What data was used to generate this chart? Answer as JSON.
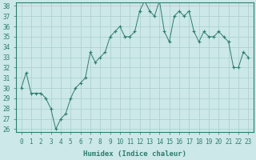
{
  "data_points": [
    [
      0,
      30
    ],
    [
      0.5,
      31.5
    ],
    [
      1,
      29.5
    ],
    [
      1.5,
      29.5
    ],
    [
      2,
      29.5
    ],
    [
      2.5,
      29
    ],
    [
      3,
      28
    ],
    [
      3.5,
      26
    ],
    [
      4,
      27
    ],
    [
      4.5,
      27.5
    ],
    [
      5,
      29
    ],
    [
      5.5,
      30
    ],
    [
      6,
      30.5
    ],
    [
      6.5,
      31
    ],
    [
      7,
      33.5
    ],
    [
      7.5,
      32.5
    ],
    [
      8,
      33
    ],
    [
      8.5,
      33.5
    ],
    [
      9,
      35
    ],
    [
      9.5,
      35.5
    ],
    [
      10,
      36
    ],
    [
      10.5,
      35
    ],
    [
      11,
      35
    ],
    [
      11.5,
      35.5
    ],
    [
      12,
      37.5
    ],
    [
      12.5,
      38.5
    ],
    [
      13,
      37.5
    ],
    [
      13.5,
      37
    ],
    [
      14,
      38.5
    ],
    [
      14.5,
      35.5
    ],
    [
      15,
      34.5
    ],
    [
      15.5,
      37
    ],
    [
      16,
      37.5
    ],
    [
      16.5,
      37
    ],
    [
      17,
      37.5
    ],
    [
      17.5,
      35.5
    ],
    [
      18,
      34.5
    ],
    [
      18.5,
      35.5
    ],
    [
      19,
      35
    ],
    [
      19.5,
      35
    ],
    [
      20,
      35.5
    ],
    [
      20.5,
      35
    ],
    [
      21,
      34.5
    ],
    [
      21.5,
      32
    ],
    [
      22,
      32
    ],
    [
      22.5,
      33.5
    ],
    [
      23,
      33
    ]
  ],
  "line_color": "#2e7d6e",
  "marker_color": "#2e7d6e",
  "bg_color": "#cce8e8",
  "grid_color": "#aacece",
  "axis_color": "#2e7d6e",
  "xlabel": "Humidex (Indice chaleur)",
  "ylim": [
    26,
    38
  ],
  "xlim": [
    -0.5,
    23.5
  ],
  "yticks": [
    26,
    27,
    28,
    29,
    30,
    31,
    32,
    33,
    34,
    35,
    36,
    37,
    38
  ],
  "xticks": [
    0,
    1,
    2,
    3,
    4,
    5,
    6,
    7,
    8,
    9,
    10,
    11,
    12,
    13,
    14,
    15,
    16,
    17,
    18,
    19,
    20,
    21,
    22,
    23
  ],
  "tick_fontsize": 5.5,
  "label_fontsize": 6.5
}
